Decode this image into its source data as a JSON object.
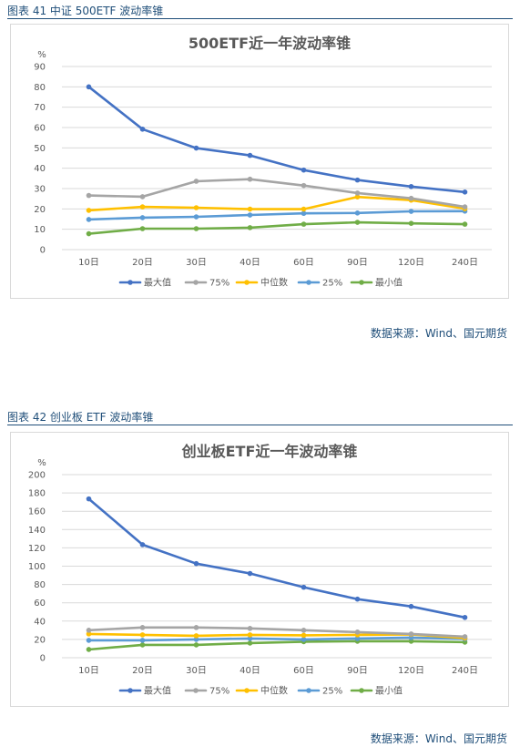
{
  "figures": [
    {
      "caption": "图表 41  中证 500ETF 波动率锥",
      "source": "数据来源：Wind、国元期货"
    },
    {
      "caption": "图表 42  创业板 ETF 波动率锥",
      "source": "数据来源：Wind、国元期货"
    }
  ],
  "chart_data": [
    {
      "type": "line",
      "title": "500ETF近一年波动率锥",
      "ylabel": "%",
      "ylim": [
        0,
        90
      ],
      "ytick_step": 10,
      "categories": [
        "10日",
        "20日",
        "30日",
        "40日",
        "60日",
        "90日",
        "120日",
        "240日"
      ],
      "grid": true,
      "legend": "bottom",
      "series": [
        {
          "name": "最大值",
          "color": "#4472c4",
          "values": [
            80,
            59.2,
            49.9,
            46.3,
            39.1,
            34.2,
            31.0,
            28.3
          ]
        },
        {
          "name": "75%",
          "color": "#a5a5a5",
          "values": [
            26.6,
            26.0,
            33.6,
            34.6,
            31.5,
            27.8,
            25.2,
            21.0
          ]
        },
        {
          "name": "中位数",
          "color": "#ffc000",
          "values": [
            19.3,
            21.0,
            20.6,
            19.9,
            19.9,
            25.9,
            24.3,
            20.1
          ]
        },
        {
          "name": "25%",
          "color": "#5b9bd5",
          "values": [
            14.8,
            15.7,
            16.1,
            17.0,
            17.8,
            18.0,
            18.8,
            18.9
          ]
        },
        {
          "name": "最小值",
          "color": "#70ad47",
          "values": [
            7.8,
            10.3,
            10.3,
            10.8,
            12.5,
            13.4,
            12.9,
            12.5
          ]
        }
      ]
    },
    {
      "type": "line",
      "title": "创业板ETF近一年波动率锥",
      "ylabel": "%",
      "ylim": [
        0,
        200
      ],
      "ytick_step": 20,
      "categories": [
        "10日",
        "20日",
        "30日",
        "40日",
        "60日",
        "90日",
        "120日",
        "240日"
      ],
      "grid": true,
      "legend": "bottom",
      "series": [
        {
          "name": "最大值",
          "color": "#4472c4",
          "values": [
            173.5,
            123.5,
            102.8,
            92.0,
            77.0,
            64.0,
            56.0,
            44.0
          ]
        },
        {
          "name": "75%",
          "color": "#a5a5a5",
          "values": [
            30.0,
            33.0,
            33.0,
            32.0,
            30.0,
            28.0,
            26.0,
            23.0
          ]
        },
        {
          "name": "中位数",
          "color": "#ffc000",
          "values": [
            26.0,
            25.0,
            24.0,
            25.0,
            24.5,
            25.0,
            25.5,
            21.5
          ]
        },
        {
          "name": "25%",
          "color": "#5b9bd5",
          "values": [
            19.0,
            19.0,
            20.0,
            21.0,
            20.0,
            21.0,
            22.0,
            20.5
          ]
        },
        {
          "name": "最小值",
          "color": "#70ad47",
          "values": [
            9.0,
            14.0,
            14.0,
            16.0,
            17.5,
            18.0,
            18.0,
            17.0
          ]
        }
      ]
    }
  ]
}
